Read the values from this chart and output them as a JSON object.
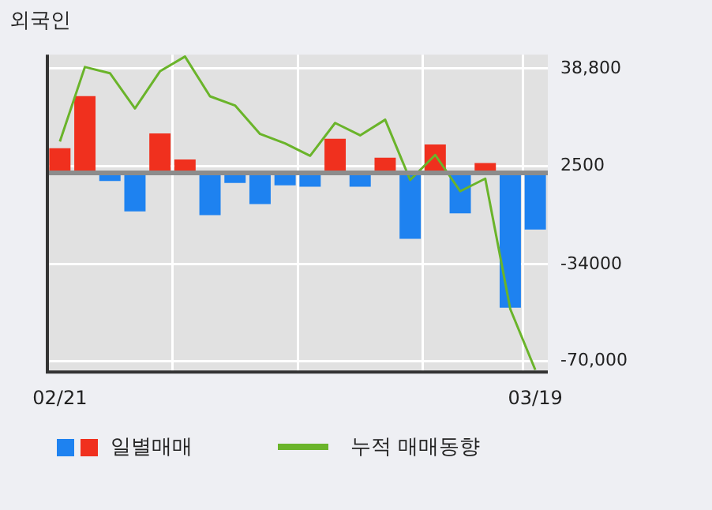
{
  "chart_data": {
    "type": "bar",
    "title": "외국인",
    "categories": [
      "02/21",
      null,
      null,
      null,
      null,
      null,
      null,
      null,
      null,
      null,
      null,
      null,
      null,
      null,
      null,
      null,
      null,
      null,
      null,
      "03/19"
    ],
    "series": [
      {
        "name": "일별매매",
        "colors": [
          "#f0301e",
          "#f0301e",
          "#1e82f0",
          "#1e82f0",
          "#f0301e",
          "#f0301e",
          "#1e82f0",
          "#1e82f0",
          "#1e82f0",
          "#1e82f0",
          "#1e82f0",
          "#f0301e",
          "#1e82f0",
          "#f0301e",
          "#1e82f0",
          "#f0301e",
          "#1e82f0",
          "#f0301e",
          "#1e82f0",
          "#1e82f0"
        ],
        "values": [
          9200,
          28600,
          -3000,
          -14300,
          14700,
          5000,
          -15700,
          -3700,
          -11600,
          -4600,
          -5100,
          12700,
          -5100,
          5700,
          -24500,
          10600,
          -15000,
          3700,
          -50100,
          -21000
        ]
      },
      {
        "name": "누적 매매동향",
        "type": "line",
        "color": "#6ab42a",
        "values": [
          11700,
          39400,
          37100,
          24000,
          37800,
          43300,
          28500,
          25100,
          14500,
          11000,
          6400,
          18600,
          14000,
          19800,
          -2600,
          6700,
          -6800,
          -2100,
          -50600,
          -73200
        ]
      }
    ],
    "ylim": [
      -74000,
      44000
    ],
    "yticks": [
      {
        "value": 38800,
        "label": "38,800"
      },
      2500,
      -34000,
      {
        "value": -70000,
        "label": "-70,000"
      }
    ],
    "ref_lines": [
      {
        "axis": "y",
        "value": 0,
        "color": "#8c8c8c"
      }
    ],
    "grid": true,
    "legend": "bottom",
    "marker": "none"
  }
}
